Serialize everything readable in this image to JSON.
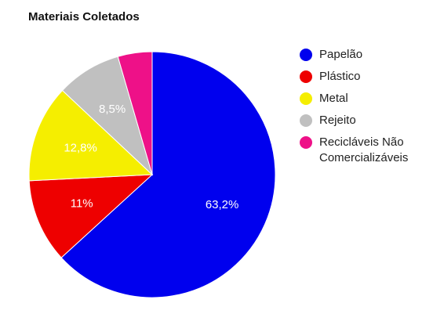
{
  "chart_data": {
    "type": "pie",
    "title": "Materiais Coletados",
    "slices": [
      {
        "label": "Papelão",
        "value": 63.2,
        "display": "63,2%",
        "color": "#0000ee"
      },
      {
        "label": "Plástico",
        "value": 11.0,
        "display": "11%",
        "color": "#ee0000"
      },
      {
        "label": "Metal",
        "value": 12.8,
        "display": "12,8%",
        "color": "#f5ee00"
      },
      {
        "label": "Rejeito",
        "value": 8.5,
        "display": "8,5%",
        "color": "#c0c0c0"
      },
      {
        "label": "Recicláveis Não Comercializáveis",
        "value": 4.5,
        "display": "",
        "color": "#ee1188"
      }
    ],
    "legend_position": "right"
  }
}
